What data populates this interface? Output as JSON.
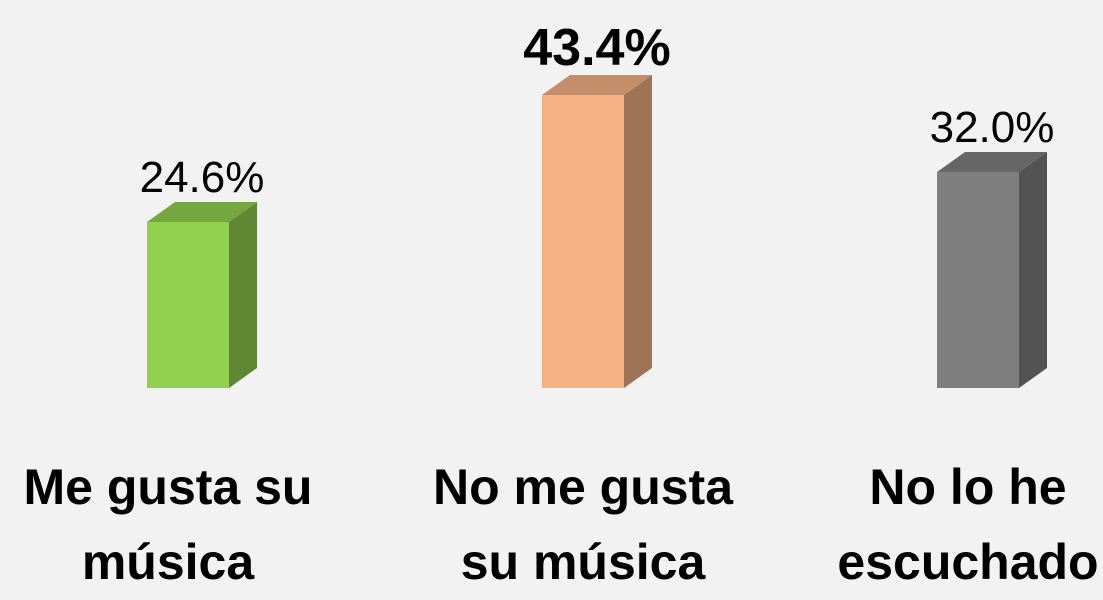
{
  "chart_data": {
    "type": "bar",
    "categories": [
      "Me gusta su música",
      "No me gusta su música",
      "No lo he escuchado"
    ],
    "values": [
      24.6,
      43.4,
      32.0
    ],
    "value_labels": [
      "24.6%",
      "43.4%",
      "32.0%"
    ],
    "colors": [
      "#92d050",
      "#f4b183",
      "#7f7f7f"
    ],
    "ylim": [
      0,
      50
    ]
  }
}
